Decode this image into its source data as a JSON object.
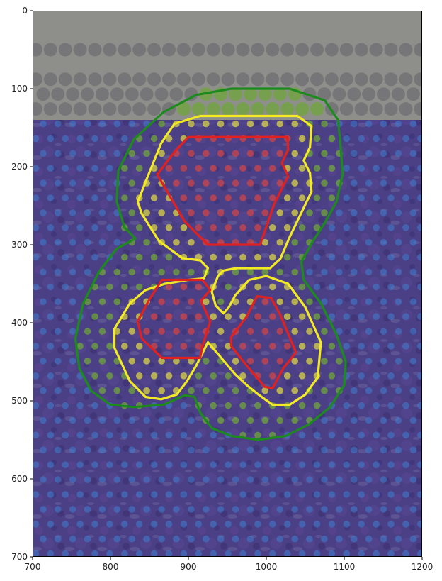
{
  "chart_data": {
    "type": "scatter",
    "title": "",
    "xlabel": "",
    "ylabel": "",
    "xlim": [
      700,
      1200
    ],
    "ylim": [
      700,
      0
    ],
    "xticks": [
      700,
      800,
      900,
      1000,
      1100,
      1200
    ],
    "yticks": [
      0,
      100,
      200,
      300,
      400,
      500,
      600,
      700
    ],
    "grid": false,
    "legend": "none",
    "background": {
      "tissue_top_y": 140,
      "upper_region_color": "#8e8f8b",
      "tissue_color": "#4b3f86"
    },
    "spots": {
      "spacing_x": 19,
      "spacing_y": 19,
      "radius": 4.8,
      "tissue_spot_color": "#3f7fcf",
      "slide_spot_color": "#6e6e72"
    },
    "series": [
      {
        "color": "#1d8a1d",
        "spot_color": "#6fa53a",
        "polygon": [
          [
            955,
            100
          ],
          [
            1030,
            100
          ],
          [
            1075,
            115
          ],
          [
            1092,
            140
          ],
          [
            1095,
            170
          ],
          [
            1098,
            210
          ],
          [
            1090,
            245
          ],
          [
            1075,
            272
          ],
          [
            1060,
            295
          ],
          [
            1045,
            322
          ],
          [
            1048,
            345
          ],
          [
            1070,
            375
          ],
          [
            1090,
            415
          ],
          [
            1102,
            450
          ],
          [
            1100,
            480
          ],
          [
            1082,
            508
          ],
          [
            1055,
            530
          ],
          [
            1025,
            545
          ],
          [
            990,
            550
          ],
          [
            955,
            545
          ],
          [
            930,
            535
          ],
          [
            915,
            515
          ],
          [
            908,
            495
          ],
          [
            895,
            493
          ],
          [
            868,
            505
          ],
          [
            830,
            508
          ],
          [
            800,
            505
          ],
          [
            775,
            487
          ],
          [
            760,
            458
          ],
          [
            755,
            420
          ],
          [
            765,
            375
          ],
          [
            785,
            335
          ],
          [
            808,
            305
          ],
          [
            832,
            292
          ],
          [
            818,
            278
          ],
          [
            808,
            245
          ],
          [
            810,
            205
          ],
          [
            830,
            165
          ],
          [
            868,
            130
          ],
          [
            910,
            108
          ]
        ]
      },
      {
        "color": "#f2ea23",
        "spot_color": "#d8d446",
        "polygon": [
          [
            915,
            135
          ],
          [
            1040,
            135
          ],
          [
            1058,
            148
          ],
          [
            1056,
            175
          ],
          [
            1048,
            192
          ],
          [
            1056,
            208
          ],
          [
            1058,
            232
          ],
          [
            1030,
            290
          ],
          [
            1018,
            318
          ],
          [
            1005,
            330
          ],
          [
            962,
            330
          ],
          [
            945,
            333
          ],
          [
            938,
            340
          ],
          [
            930,
            360
          ],
          [
            935,
            378
          ],
          [
            945,
            388
          ],
          [
            952,
            380
          ],
          [
            960,
            365
          ],
          [
            978,
            345
          ],
          [
            1000,
            340
          ],
          [
            1028,
            350
          ],
          [
            1050,
            380
          ],
          [
            1070,
            425
          ],
          [
            1066,
            470
          ],
          [
            1050,
            492
          ],
          [
            1030,
            505
          ],
          [
            1008,
            505
          ],
          [
            990,
            492
          ],
          [
            975,
            480
          ],
          [
            960,
            466
          ],
          [
            938,
            440
          ],
          [
            925,
            425
          ],
          [
            910,
            455
          ],
          [
            898,
            475
          ],
          [
            885,
            492
          ],
          [
            865,
            498
          ],
          [
            845,
            495
          ],
          [
            825,
            475
          ],
          [
            805,
            432
          ],
          [
            805,
            408
          ],
          [
            825,
            375
          ],
          [
            845,
            358
          ],
          [
            870,
            350
          ],
          [
            900,
            345
          ],
          [
            920,
            343
          ],
          [
            925,
            330
          ],
          [
            915,
            320
          ],
          [
            892,
            317
          ],
          [
            862,
            295
          ],
          [
            840,
            260
          ],
          [
            835,
            245
          ],
          [
            848,
            212
          ],
          [
            865,
            170
          ],
          [
            882,
            145
          ]
        ]
      },
      {
        "color": "#e0211f",
        "spot_color": "#cf4647",
        "polygon": [
          [
            900,
            162
          ],
          [
            1027,
            162
          ],
          [
            1028,
            178
          ],
          [
            1020,
            195
          ],
          [
            1028,
            212
          ],
          [
            1010,
            248
          ],
          [
            992,
            300
          ],
          [
            925,
            300
          ],
          [
            895,
            270
          ],
          [
            860,
            210
          ],
          [
            883,
            180
          ]
        ]
      },
      {
        "color": "#e0211f",
        "spot_color": "#cf4647",
        "polygon": [
          [
            866,
            345
          ],
          [
            918,
            345
          ],
          [
            928,
            358
          ],
          [
            916,
            372
          ],
          [
            928,
            398
          ],
          [
            918,
            430
          ],
          [
            915,
            445
          ],
          [
            866,
            445
          ],
          [
            840,
            420
          ],
          [
            835,
            398
          ],
          [
            850,
            370
          ]
        ]
      },
      {
        "color": "#e0211f",
        "spot_color": "#cf4647",
        "polygon": [
          [
            988,
            366
          ],
          [
            1006,
            368
          ],
          [
            1018,
            390
          ],
          [
            1038,
            438
          ],
          [
            1022,
            458
          ],
          [
            1008,
            484
          ],
          [
            998,
            482
          ],
          [
            975,
            455
          ],
          [
            955,
            430
          ],
          [
            955,
            418
          ],
          [
            975,
            392
          ]
        ]
      }
    ]
  }
}
